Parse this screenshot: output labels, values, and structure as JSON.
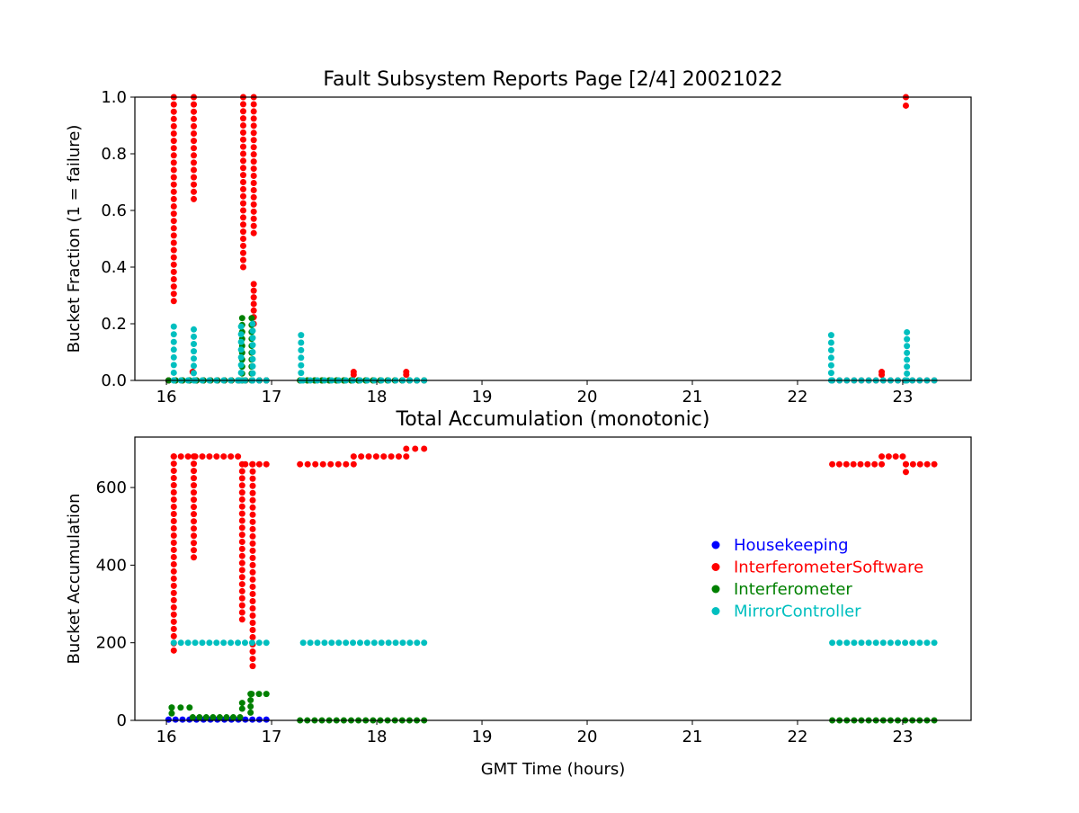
{
  "figure": {
    "legend": {
      "placement": "right",
      "entries": [
        {
          "label": "Housekeeping",
          "color": "#0000ff"
        },
        {
          "label": "InterferometerSoftware",
          "color": "#ff0000"
        },
        {
          "label": "Interferometer",
          "color": "#008000"
        },
        {
          "label": "MirrorController",
          "color": "#00bfbf"
        }
      ]
    }
  },
  "chart_data": [
    {
      "type": "scatter",
      "title": "Fault Subsystem Reports Page [2/4] 20021022",
      "xlabel": "",
      "ylabel": "Bucket Fraction (1 = failure)",
      "xlim": [
        15.7,
        23.65
      ],
      "ylim": [
        0,
        1.0
      ],
      "xticks": [
        16,
        17,
        18,
        19,
        20,
        21,
        22,
        23
      ],
      "yticks": [
        0.0,
        0.2,
        0.4,
        0.6,
        0.8,
        1.0
      ],
      "ytick_labels": [
        "0.0",
        "0.2",
        "0.4",
        "0.6",
        "0.8",
        "1.0"
      ],
      "grid": false,
      "series": [
        {
          "name": "Housekeeping",
          "color": "#0000ff",
          "segments": [
            {
              "x0": 16.02,
              "x1": 16.95,
              "y": 0.0
            }
          ],
          "columns": []
        },
        {
          "name": "InterferometerSoftware",
          "color": "#ff0000",
          "segments": [
            {
              "x0": 16.02,
              "x1": 16.95,
              "y": 0.0
            },
            {
              "x0": 17.27,
              "x1": 18.45,
              "y": 0.0
            },
            {
              "x0": 22.33,
              "x1": 23.3,
              "y": 0.0
            }
          ],
          "columns": [
            {
              "x": 16.07,
              "y0": 0.28,
              "y1": 1.0
            },
            {
              "x": 16.26,
              "y0": 0.64,
              "y1": 1.0
            },
            {
              "x": 16.25,
              "y0": 0.03,
              "y1": 0.03
            },
            {
              "x": 16.73,
              "y0": 0.4,
              "y1": 1.0
            },
            {
              "x": 16.83,
              "y0": 0.52,
              "y1": 1.0
            },
            {
              "x": 16.83,
              "y0": 0.2,
              "y1": 0.34
            },
            {
              "x": 17.78,
              "y0": 0.02,
              "y1": 0.03
            },
            {
              "x": 18.28,
              "y0": 0.02,
              "y1": 0.03
            },
            {
              "x": 22.8,
              "y0": 0.02,
              "y1": 0.03
            },
            {
              "x": 23.03,
              "y0": 0.97,
              "y1": 1.0
            }
          ]
        },
        {
          "name": "Interferometer",
          "color": "#008000",
          "segments": [
            {
              "x0": 16.02,
              "x1": 16.95,
              "y": 0.0
            },
            {
              "x0": 17.27,
              "x1": 18.45,
              "y": 0.0
            }
          ],
          "columns": [
            {
              "x": 16.72,
              "y0": 0.0,
              "y1": 0.22
            },
            {
              "x": 16.81,
              "y0": 0.0,
              "y1": 0.22
            }
          ]
        },
        {
          "name": "MirrorController",
          "color": "#00bfbf",
          "segments": [
            {
              "x0": 16.07,
              "x1": 16.95,
              "y": 0.0
            },
            {
              "x0": 17.3,
              "x1": 18.45,
              "y": 0.0
            },
            {
              "x0": 22.33,
              "x1": 23.3,
              "y": 0.0
            }
          ],
          "columns": [
            {
              "x": 16.07,
              "y0": 0.0,
              "y1": 0.19
            },
            {
              "x": 16.26,
              "y0": 0.0,
              "y1": 0.18
            },
            {
              "x": 16.71,
              "y0": 0.0,
              "y1": 0.19
            },
            {
              "x": 16.82,
              "y0": 0.0,
              "y1": 0.2
            },
            {
              "x": 17.28,
              "y0": 0.0,
              "y1": 0.16
            },
            {
              "x": 22.32,
              "y0": 0.0,
              "y1": 0.16
            },
            {
              "x": 23.04,
              "y0": 0.0,
              "y1": 0.17
            }
          ]
        }
      ]
    },
    {
      "type": "scatter",
      "title": "Total Accumulation (monotonic)",
      "xlabel": "GMT Time (hours)",
      "ylabel": "Bucket Accumulation",
      "xlim": [
        15.7,
        23.65
      ],
      "ylim": [
        0,
        730
      ],
      "xticks": [
        16,
        17,
        18,
        19,
        20,
        21,
        22,
        23
      ],
      "yticks": [
        0,
        200,
        400,
        600
      ],
      "ytick_labels": [
        "0",
        "200",
        "400",
        "600"
      ],
      "grid": false,
      "series": [
        {
          "name": "Housekeeping",
          "color": "#0000ff",
          "segments": [
            {
              "x0": 16.02,
              "x1": 16.95,
              "y": 2
            }
          ],
          "columns": []
        },
        {
          "name": "InterferometerSoftware",
          "color": "#ff0000",
          "segments": [
            {
              "x0": 16.07,
              "x1": 16.68,
              "y": 680
            },
            {
              "x0": 16.75,
              "x1": 16.95,
              "y": 660
            },
            {
              "x0": 17.27,
              "x1": 17.78,
              "y": 660
            },
            {
              "x0": 17.78,
              "x1": 18.28,
              "y": 680
            },
            {
              "x0": 18.28,
              "x1": 18.45,
              "y": 700
            },
            {
              "x0": 22.33,
              "x1": 22.8,
              "y": 660
            },
            {
              "x0": 22.8,
              "x1": 23.0,
              "y": 680
            },
            {
              "x0": 23.03,
              "x1": 23.3,
              "y": 660
            }
          ],
          "columns": [
            {
              "x": 16.07,
              "y0": 180,
              "y1": 680
            },
            {
              "x": 16.26,
              "y0": 420,
              "y1": 680
            },
            {
              "x": 16.72,
              "y0": 260,
              "y1": 660
            },
            {
              "x": 16.82,
              "y0": 140,
              "y1": 660
            },
            {
              "x": 23.03,
              "y0": 640,
              "y1": 660
            }
          ]
        },
        {
          "name": "Interferometer",
          "color": "#008000",
          "segments": [
            {
              "x0": 16.05,
              "x1": 16.22,
              "y": 33
            },
            {
              "x0": 16.25,
              "x1": 16.7,
              "y": 8
            },
            {
              "x0": 16.81,
              "x1": 16.95,
              "y": 68
            },
            {
              "x0": 17.27,
              "x1": 18.45,
              "y": 0
            },
            {
              "x0": 22.33,
              "x1": 23.3,
              "y": 0
            }
          ],
          "columns": [
            {
              "x": 16.05,
              "y0": 18,
              "y1": 33
            },
            {
              "x": 16.72,
              "y0": 30,
              "y1": 45
            },
            {
              "x": 16.8,
              "y0": 20,
              "y1": 68
            }
          ]
        },
        {
          "name": "MirrorController",
          "color": "#00bfbf",
          "segments": [
            {
              "x0": 16.07,
              "x1": 16.95,
              "y": 200
            },
            {
              "x0": 17.3,
              "x1": 18.45,
              "y": 200
            },
            {
              "x0": 22.33,
              "x1": 23.3,
              "y": 200
            }
          ],
          "columns": []
        }
      ]
    }
  ]
}
